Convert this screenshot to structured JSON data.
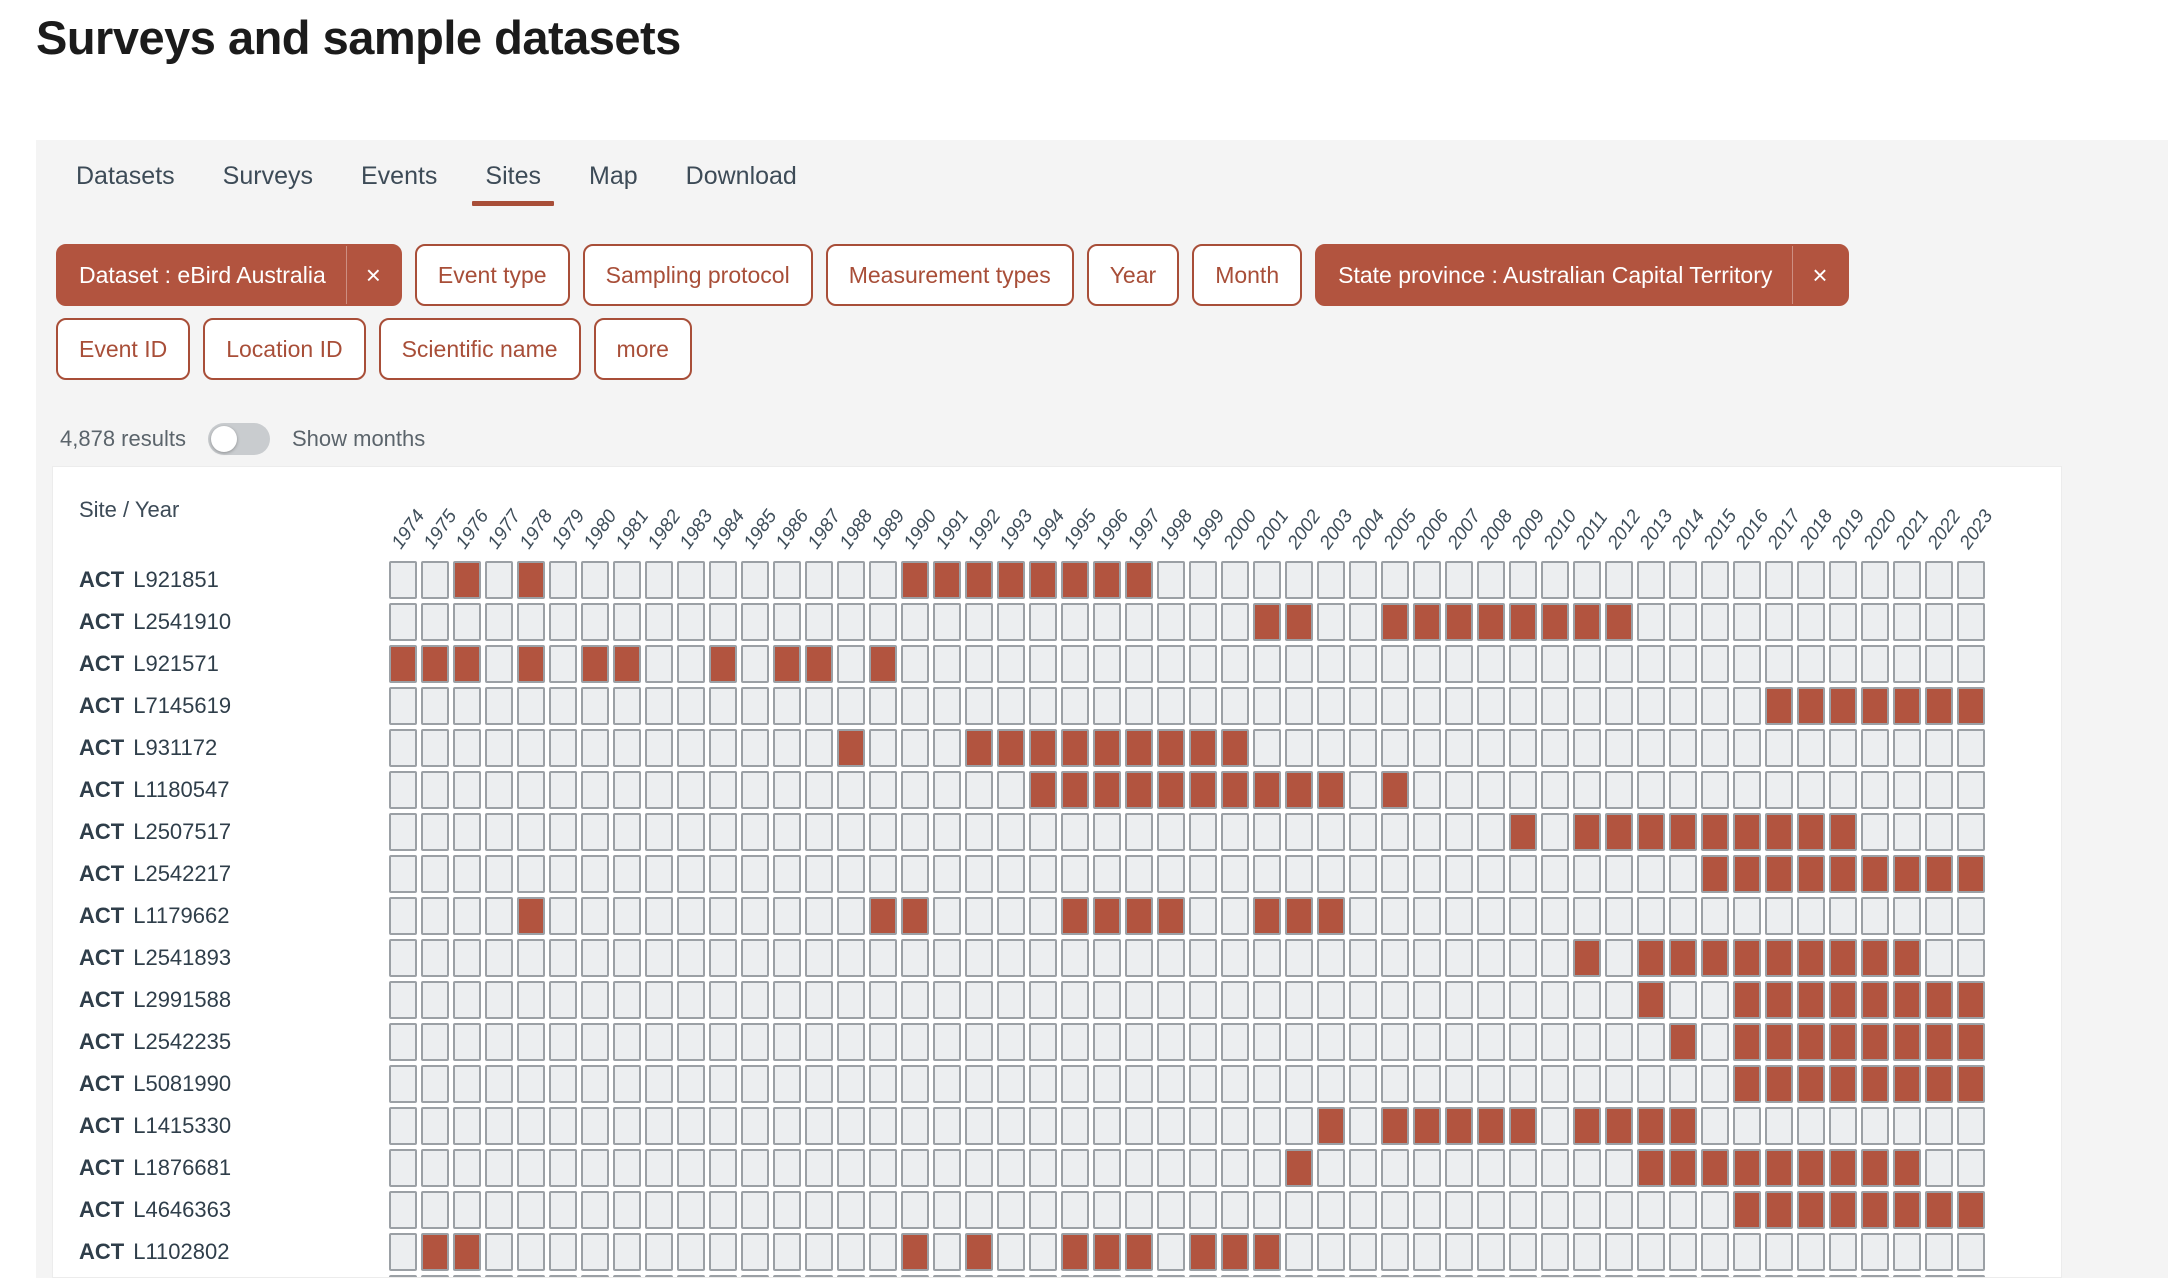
{
  "page": {
    "title": "Surveys and sample datasets"
  },
  "tabs": {
    "items": [
      {
        "label": "Datasets",
        "active": false
      },
      {
        "label": "Surveys",
        "active": false
      },
      {
        "label": "Events",
        "active": false
      },
      {
        "label": "Sites",
        "active": true
      },
      {
        "label": "Map",
        "active": false
      },
      {
        "label": "Download",
        "active": false
      }
    ]
  },
  "filters": {
    "row1": [
      {
        "label": "Dataset : eBird Australia",
        "active": true,
        "removable": true
      },
      {
        "label": "Event type",
        "active": false,
        "removable": false
      },
      {
        "label": "Sampling protocol",
        "active": false,
        "removable": false
      },
      {
        "label": "Measurement types",
        "active": false,
        "removable": false
      },
      {
        "label": "Year",
        "active": false,
        "removable": false
      },
      {
        "label": "Month",
        "active": false,
        "removable": false
      },
      {
        "label": "State province : Australian Capital Territory",
        "active": true,
        "removable": true
      }
    ],
    "row2": [
      {
        "label": "Event ID",
        "active": false,
        "removable": false
      },
      {
        "label": "Location ID",
        "active": false,
        "removable": false
      },
      {
        "label": "Scientific name",
        "active": false,
        "removable": false
      },
      {
        "label": "more",
        "active": false,
        "removable": false
      }
    ],
    "remove_icon": "×"
  },
  "results": {
    "count_text": "4,878 results",
    "toggle_label": "Show months",
    "toggle_on": false
  },
  "chart_data": {
    "type": "heatmap",
    "title": "Site / Year presence grid",
    "x_label": "Year",
    "y_label": "Site",
    "year_start": 1974,
    "year_end": 2023,
    "corner_label": "Site / Year",
    "rows": [
      {
        "region": "ACT",
        "site": "L921851",
        "filled_years": [
          1976,
          1978,
          1990,
          1991,
          1992,
          1993,
          1994,
          1995,
          1996,
          1997
        ]
      },
      {
        "region": "ACT",
        "site": "L2541910",
        "filled_years": [
          2001,
          2002,
          2005,
          2006,
          2007,
          2008,
          2009,
          2010,
          2011,
          2012
        ]
      },
      {
        "region": "ACT",
        "site": "L921571",
        "filled_years": [
          1974,
          1975,
          1976,
          1978,
          1980,
          1981,
          1984,
          1986,
          1987,
          1989
        ]
      },
      {
        "region": "ACT",
        "site": "L7145619",
        "filled_years": [
          2017,
          2018,
          2019,
          2020,
          2021,
          2022,
          2023
        ]
      },
      {
        "region": "ACT",
        "site": "L931172",
        "filled_years": [
          1988,
          1992,
          1993,
          1994,
          1995,
          1996,
          1997,
          1998,
          1999,
          2000
        ]
      },
      {
        "region": "ACT",
        "site": "L1180547",
        "filled_years": [
          1994,
          1995,
          1996,
          1997,
          1998,
          1999,
          2000,
          2001,
          2002,
          2003,
          2005
        ]
      },
      {
        "region": "ACT",
        "site": "L2507517",
        "filled_years": [
          2009,
          2011,
          2012,
          2013,
          2014,
          2015,
          2016,
          2017,
          2018,
          2019
        ]
      },
      {
        "region": "ACT",
        "site": "L2542217",
        "filled_years": [
          2015,
          2016,
          2017,
          2018,
          2019,
          2020,
          2021,
          2022,
          2023
        ]
      },
      {
        "region": "ACT",
        "site": "L1179662",
        "filled_years": [
          1978,
          1989,
          1990,
          1995,
          1996,
          1997,
          1998,
          2001,
          2002,
          2003
        ]
      },
      {
        "region": "ACT",
        "site": "L2541893",
        "filled_years": [
          2011,
          2013,
          2014,
          2015,
          2016,
          2017,
          2018,
          2019,
          2020,
          2021
        ]
      },
      {
        "region": "ACT",
        "site": "L2991588",
        "filled_years": [
          2013,
          2016,
          2017,
          2018,
          2019,
          2020,
          2021,
          2022,
          2023
        ]
      },
      {
        "region": "ACT",
        "site": "L2542235",
        "filled_years": [
          2014,
          2016,
          2017,
          2018,
          2019,
          2020,
          2021,
          2022,
          2023
        ]
      },
      {
        "region": "ACT",
        "site": "L5081990",
        "filled_years": [
          2016,
          2017,
          2018,
          2019,
          2020,
          2021,
          2022,
          2023
        ]
      },
      {
        "region": "ACT",
        "site": "L1415330",
        "filled_years": [
          2003,
          2005,
          2006,
          2007,
          2008,
          2009,
          2011,
          2012,
          2013,
          2014
        ]
      },
      {
        "region": "ACT",
        "site": "L1876681",
        "filled_years": [
          2002,
          2013,
          2014,
          2015,
          2016,
          2017,
          2018,
          2019,
          2020,
          2021
        ]
      },
      {
        "region": "ACT",
        "site": "L4646363",
        "filled_years": [
          2016,
          2017,
          2018,
          2019,
          2020,
          2021,
          2022,
          2023
        ]
      },
      {
        "region": "ACT",
        "site": "L1102802",
        "filled_years": [
          1975,
          1976,
          1990,
          1992,
          1995,
          1996,
          1997,
          1999,
          2000,
          2001
        ]
      },
      {
        "region": "",
        "site": "",
        "filled_years": [],
        "partial": true
      }
    ]
  },
  "colors": {
    "accent": "#a84e38",
    "accent-fill": "#b2543f",
    "cell-empty": "#eceef0",
    "cell-border": "#9ba0a5"
  }
}
